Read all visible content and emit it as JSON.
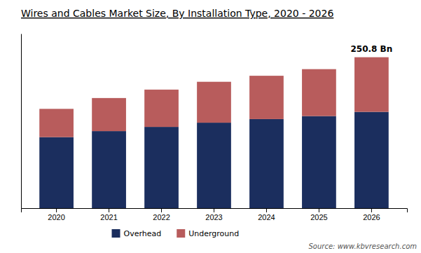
{
  "chart_data": {
    "type": "bar",
    "stacked": true,
    "title": "Wires and Cables Market Size, By Installation Type, 2020 - 2026",
    "categories": [
      "2020",
      "2021",
      "2022",
      "2023",
      "2024",
      "2025",
      "2026"
    ],
    "series": [
      {
        "name": "Overhead",
        "color": "#1b2e5e",
        "values": [
          118,
          128,
          135,
          142,
          148,
          153,
          160
        ]
      },
      {
        "name": "Underground",
        "color": "#b85c5c",
        "values": [
          47,
          55,
          62,
          68,
          72,
          78,
          90.8
        ]
      }
    ],
    "ylim": [
      0,
      290
    ],
    "tick_labels": "x",
    "grid": false,
    "legend": "bottom",
    "annotations": [
      {
        "text": "250.8 Bn",
        "x": "2026"
      }
    ],
    "source": "Source: www.kbvresearch.com"
  }
}
